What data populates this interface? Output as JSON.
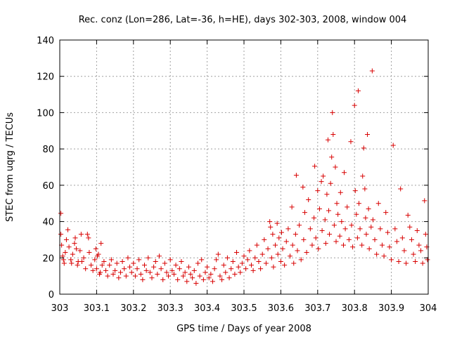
{
  "chart_data": {
    "type": "scatter",
    "title": "Rec. conz (Lon=286, Lat=-36, h=HE), days 302-303, 2008, window 004",
    "xlabel": "GPS time / Days of year 2008",
    "ylabel": "STEC from uqrg / TECUs",
    "xlim": [
      303,
      304
    ],
    "ylim": [
      0,
      140
    ],
    "x_ticks": [
      "303",
      "303.1",
      "303.2",
      "303.3",
      "303.4",
      "303.5",
      "303.6",
      "303.7",
      "303.8",
      "303.9",
      "304"
    ],
    "y_ticks": [
      "0",
      "20",
      "40",
      "60",
      "80",
      "100",
      "120",
      "140"
    ],
    "grid": true,
    "legend": "none",
    "marker": "plus",
    "color": "#d80000",
    "points": [
      [
        303.003,
        44.5
      ],
      [
        303.003,
        33
      ],
      [
        303.005,
        27
      ],
      [
        303.008,
        21
      ],
      [
        303.01,
        19
      ],
      [
        303.012,
        17
      ],
      [
        303.015,
        23
      ],
      [
        303.018,
        30
      ],
      [
        303.022,
        35.5
      ],
      [
        303.025,
        26
      ],
      [
        303.03,
        19
      ],
      [
        303.032,
        17
      ],
      [
        303.035,
        22
      ],
      [
        303.04,
        28
      ],
      [
        303.042,
        31
      ],
      [
        303.045,
        25
      ],
      [
        303.048,
        16
      ],
      [
        303.05,
        18
      ],
      [
        303.055,
        24
      ],
      [
        303.058,
        33
      ],
      [
        303.06,
        18
      ],
      [
        303.065,
        20
      ],
      [
        303.07,
        14
      ],
      [
        303.075,
        33
      ],
      [
        303.078,
        31
      ],
      [
        303.08,
        23
      ],
      [
        303.085,
        16
      ],
      [
        303.09,
        13
      ],
      [
        303.095,
        19
      ],
      [
        303.098,
        25
      ],
      [
        303.1,
        14
      ],
      [
        303.102,
        21
      ],
      [
        303.105,
        22
      ],
      [
        303.108,
        11
      ],
      [
        303.11,
        12
      ],
      [
        303.112,
        28
      ],
      [
        303.115,
        16
      ],
      [
        303.12,
        18
      ],
      [
        303.125,
        13
      ],
      [
        303.13,
        10
      ],
      [
        303.135,
        16
      ],
      [
        303.14,
        19
      ],
      [
        303.145,
        11
      ],
      [
        303.15,
        13
      ],
      [
        303.155,
        17
      ],
      [
        303.16,
        9
      ],
      [
        303.165,
        12
      ],
      [
        303.17,
        18
      ],
      [
        303.175,
        14
      ],
      [
        303.18,
        10
      ],
      [
        303.185,
        20
      ],
      [
        303.19,
        15
      ],
      [
        303.195,
        12
      ],
      [
        303.2,
        17
      ],
      [
        303.205,
        10
      ],
      [
        303.21,
        14
      ],
      [
        303.215,
        19
      ],
      [
        303.22,
        11
      ],
      [
        303.225,
        8
      ],
      [
        303.23,
        16
      ],
      [
        303.235,
        13
      ],
      [
        303.24,
        20
      ],
      [
        303.245,
        12
      ],
      [
        303.25,
        9
      ],
      [
        303.255,
        15
      ],
      [
        303.26,
        18
      ],
      [
        303.265,
        11
      ],
      [
        303.27,
        21
      ],
      [
        303.275,
        14
      ],
      [
        303.28,
        8
      ],
      [
        303.285,
        17
      ],
      [
        303.29,
        12
      ],
      [
        303.295,
        10
      ],
      [
        303.3,
        19
      ],
      [
        303.305,
        13
      ],
      [
        303.31,
        11
      ],
      [
        303.315,
        16
      ],
      [
        303.32,
        8
      ],
      [
        303.325,
        14
      ],
      [
        303.33,
        18
      ],
      [
        303.335,
        10
      ],
      [
        303.34,
        12
      ],
      [
        303.345,
        7
      ],
      [
        303.35,
        15
      ],
      [
        303.355,
        11
      ],
      [
        303.36,
        9
      ],
      [
        303.365,
        13
      ],
      [
        303.37,
        6
      ],
      [
        303.375,
        17
      ],
      [
        303.38,
        10
      ],
      [
        303.385,
        19
      ],
      [
        303.39,
        8
      ],
      [
        303.395,
        12
      ],
      [
        303.4,
        15
      ],
      [
        303.405,
        9
      ],
      [
        303.41,
        11
      ],
      [
        303.415,
        7
      ],
      [
        303.42,
        14
      ],
      [
        303.425,
        19
      ],
      [
        303.43,
        22
      ],
      [
        303.435,
        10
      ],
      [
        303.44,
        8
      ],
      [
        303.445,
        16
      ],
      [
        303.45,
        12
      ],
      [
        303.455,
        20
      ],
      [
        303.46,
        9
      ],
      [
        303.465,
        14
      ],
      [
        303.47,
        18
      ],
      [
        303.475,
        11
      ],
      [
        303.48,
        23
      ],
      [
        303.485,
        15
      ],
      [
        303.49,
        12
      ],
      [
        303.495,
        17
      ],
      [
        303.5,
        21
      ],
      [
        303.505,
        14
      ],
      [
        303.51,
        19
      ],
      [
        303.515,
        24
      ],
      [
        303.52,
        16
      ],
      [
        303.525,
        13
      ],
      [
        303.53,
        20
      ],
      [
        303.535,
        27
      ],
      [
        303.54,
        18
      ],
      [
        303.545,
        14
      ],
      [
        303.55,
        22
      ],
      [
        303.555,
        30
      ],
      [
        303.56,
        17
      ],
      [
        303.565,
        25
      ],
      [
        303.57,
        40
      ],
      [
        303.572,
        37
      ],
      [
        303.575,
        20
      ],
      [
        303.578,
        33
      ],
      [
        303.58,
        15
      ],
      [
        303.585,
        27
      ],
      [
        303.59,
        39
      ],
      [
        303.592,
        22
      ],
      [
        303.595,
        31
      ],
      [
        303.6,
        18
      ],
      [
        303.602,
        34
      ],
      [
        303.605,
        25
      ],
      [
        303.61,
        16
      ],
      [
        303.615,
        29
      ],
      [
        303.62,
        36
      ],
      [
        303.625,
        21
      ],
      [
        303.63,
        48
      ],
      [
        303.632,
        27
      ],
      [
        303.635,
        17
      ],
      [
        303.64,
        33
      ],
      [
        303.642,
        65.5
      ],
      [
        303.645,
        24
      ],
      [
        303.65,
        38
      ],
      [
        303.655,
        19
      ],
      [
        303.66,
        59
      ],
      [
        303.662,
        30
      ],
      [
        303.665,
        45
      ],
      [
        303.67,
        23
      ],
      [
        303.675,
        52
      ],
      [
        303.68,
        36
      ],
      [
        303.685,
        27
      ],
      [
        303.69,
        42
      ],
      [
        303.692,
        70.5
      ],
      [
        303.695,
        31
      ],
      [
        303.7,
        57
      ],
      [
        303.702,
        25
      ],
      [
        303.705,
        47
      ],
      [
        303.71,
        62
      ],
      [
        303.712,
        35
      ],
      [
        303.715,
        65
      ],
      [
        303.72,
        41
      ],
      [
        303.722,
        28
      ],
      [
        303.725,
        55
      ],
      [
        303.728,
        85
      ],
      [
        303.73,
        46
      ],
      [
        303.732,
        33
      ],
      [
        303.735,
        61
      ],
      [
        303.738,
        75.5
      ],
      [
        303.74,
        100
      ],
      [
        303.742,
        88
      ],
      [
        303.745,
        38
      ],
      [
        303.748,
        70
      ],
      [
        303.75,
        29
      ],
      [
        303.752,
        50
      ],
      [
        303.755,
        44
      ],
      [
        303.76,
        32
      ],
      [
        303.762,
        56
      ],
      [
        303.765,
        40
      ],
      [
        303.77,
        27
      ],
      [
        303.772,
        67
      ],
      [
        303.775,
        36
      ],
      [
        303.78,
        48
      ],
      [
        303.785,
        30
      ],
      [
        303.79,
        84
      ],
      [
        303.792,
        38
      ],
      [
        303.795,
        26
      ],
      [
        303.8,
        104
      ],
      [
        303.802,
        57
      ],
      [
        303.805,
        44
      ],
      [
        303.808,
        31
      ],
      [
        303.81,
        112
      ],
      [
        303.812,
        50
      ],
      [
        303.815,
        36
      ],
      [
        303.82,
        27
      ],
      [
        303.822,
        65
      ],
      [
        303.825,
        80.5
      ],
      [
        303.828,
        58
      ],
      [
        303.83,
        42
      ],
      [
        303.832,
        33
      ],
      [
        303.835,
        88
      ],
      [
        303.838,
        47
      ],
      [
        303.84,
        25
      ],
      [
        303.845,
        37
      ],
      [
        303.848,
        123
      ],
      [
        303.85,
        41
      ],
      [
        303.855,
        30
      ],
      [
        303.86,
        22
      ],
      [
        303.865,
        50
      ],
      [
        303.87,
        36
      ],
      [
        303.875,
        27
      ],
      [
        303.88,
        21
      ],
      [
        303.885,
        45
      ],
      [
        303.89,
        34
      ],
      [
        303.895,
        26
      ],
      [
        303.9,
        19
      ],
      [
        303.905,
        82
      ],
      [
        303.91,
        36
      ],
      [
        303.915,
        29
      ],
      [
        303.92,
        18
      ],
      [
        303.925,
        58
      ],
      [
        303.93,
        31
      ],
      [
        303.935,
        24
      ],
      [
        303.94,
        17
      ],
      [
        303.945,
        43.5
      ],
      [
        303.95,
        37
      ],
      [
        303.955,
        30
      ],
      [
        303.96,
        22
      ],
      [
        303.965,
        18
      ],
      [
        303.97,
        35
      ],
      [
        303.975,
        27
      ],
      [
        303.98,
        24
      ],
      [
        303.985,
        17
      ],
      [
        303.99,
        51.5
      ],
      [
        303.993,
        33
      ],
      [
        303.996,
        26
      ],
      [
        303.998,
        19
      ]
    ]
  }
}
